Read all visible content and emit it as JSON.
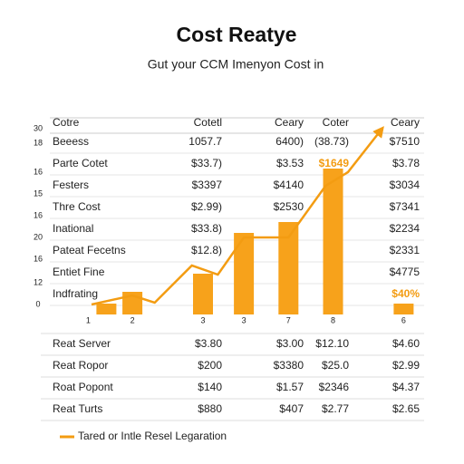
{
  "chart_data": {
    "type": "bar",
    "title": "Cost Reatye",
    "subtitle": "Gut your CCM Imenyon Cost in",
    "categories": [
      "1",
      "2",
      "3",
      "3",
      "7",
      "8",
      "6"
    ],
    "x": [
      14,
      21,
      40,
      51,
      63,
      75,
      94
    ],
    "values": [
      12,
      25,
      45,
      90,
      102,
      161,
      12
    ],
    "color": "#f7a21b",
    "line": {
      "color": "#f39c12",
      "x": [
        10,
        21,
        27,
        37,
        44,
        51,
        63,
        73,
        79,
        88
      ],
      "values": [
        11,
        21,
        13,
        54,
        44,
        85,
        85,
        142,
        157,
        204
      ]
    },
    "xlim": [
      0,
      100
    ],
    "ylim": [
      0,
      210
    ],
    "legend": "Tared or Intle Resel Legaration"
  },
  "table": {
    "header": [
      "Cotre",
      "Cotetl",
      "Ceary",
      "Coter",
      "Ceary"
    ],
    "side_labels": [
      "30",
      "18",
      "16",
      "15",
      "16",
      "20",
      "16",
      "12",
      "0"
    ],
    "rows": [
      [
        "Beeess",
        "1057.7",
        "6400)",
        "(38.73)",
        "$7510"
      ],
      [
        "Parte Cotet",
        "$33.7)",
        "$3.53",
        "$1649",
        "$3.78"
      ],
      [
        "Festers",
        "$3397",
        "$4140",
        "",
        "$3034"
      ],
      [
        "Thre Cost",
        "$2.99)",
        "$2530",
        "",
        "$7341"
      ],
      [
        "Inational",
        "$33.8)",
        "",
        "",
        "$2234"
      ],
      [
        "Pateat Fecetns",
        "$12.8)",
        "",
        "",
        "$2331"
      ],
      [
        "Entiet Fine",
        "",
        "",
        "",
        "$4775"
      ],
      [
        "Indfrating",
        "",
        "",
        "",
        "$40%"
      ]
    ],
    "bottom_rows": [
      [
        "Reat Server",
        "$3.80",
        "$3.00",
        "$12.10",
        "$4.60"
      ],
      [
        "Reat Ropor",
        "$200",
        "$3380",
        "$25.0",
        "$2.99"
      ],
      [
        "Roat Popont",
        "$140",
        "$1.57",
        "$2346",
        "$4.37"
      ],
      [
        "Reat Turts",
        "$880",
        "$407",
        "$2.77",
        "$2.65"
      ]
    ]
  }
}
